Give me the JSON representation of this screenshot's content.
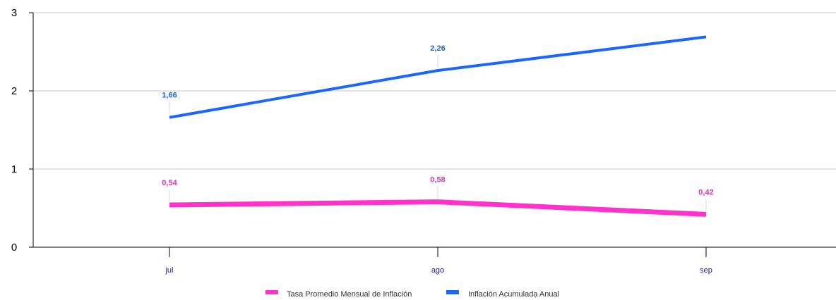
{
  "chart_data": {
    "type": "line",
    "title": "",
    "xlabel": "",
    "ylabel": "",
    "categories": [
      "jul",
      "ago",
      "sep"
    ],
    "ylim": [
      0,
      3
    ],
    "yticks": [
      0,
      1,
      2,
      3
    ],
    "grid": true,
    "legend_position": "bottom",
    "series": [
      {
        "name": "Tasa Promedio Mensual de Inflación",
        "color": "#ff33cc",
        "values": [
          0.54,
          0.58,
          0.42
        ],
        "labels": [
          "0,54",
          "0,58",
          "0,42"
        ]
      },
      {
        "name": "Inflación Acumulada Anual",
        "color": "#1a66ff",
        "values": [
          1.66,
          2.26,
          2.69
        ],
        "labels": [
          "1,66",
          "2,26",
          ""
        ]
      }
    ]
  }
}
